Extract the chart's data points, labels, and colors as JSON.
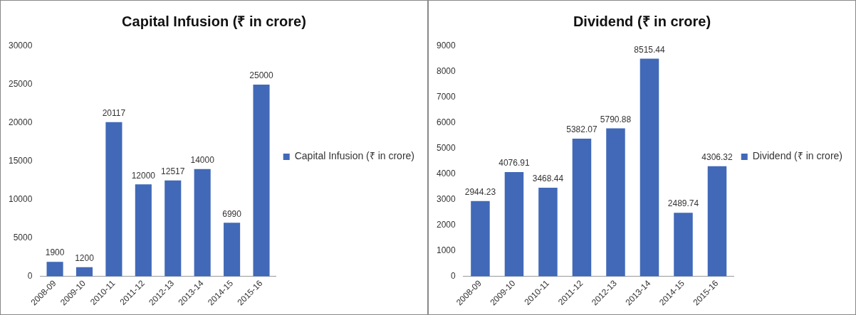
{
  "chart_data": [
    {
      "type": "bar",
      "title": "Capital Infusion (₹ in crore)",
      "categories": [
        "2008-09",
        "2009-10",
        "2010-11",
        "2011-12",
        "2012-13",
        "2013-14",
        "2014-15",
        "2015-16"
      ],
      "series": [
        {
          "name": "Capital Infusion (₹ in crore)",
          "color": "#4169b8",
          "values": [
            1900,
            1200,
            20117,
            12000,
            12517,
            14000,
            6990,
            25000
          ]
        }
      ],
      "ylim": [
        0,
        30000
      ],
      "yticks": [
        0,
        5000,
        10000,
        15000,
        20000,
        25000,
        30000
      ],
      "grid": false,
      "legend": "right",
      "data_labels": true
    },
    {
      "type": "bar",
      "title": "Dividend (₹ in crore)",
      "categories": [
        "2008-09",
        "2009-10",
        "2010-11",
        "2011-12",
        "2012-13",
        "2013-14",
        "2014-15",
        "2015-16"
      ],
      "series": [
        {
          "name": "Dividend (₹ in crore)",
          "color": "#4169b8",
          "values": [
            2944.23,
            4076.91,
            3468.44,
            5382.07,
            5790.88,
            8515.44,
            2489.74,
            4306.32
          ]
        }
      ],
      "ylim": [
        0,
        9000
      ],
      "yticks": [
        0,
        1000,
        2000,
        3000,
        4000,
        5000,
        6000,
        7000,
        8000,
        9000
      ],
      "grid": false,
      "legend": "right",
      "data_labels": true
    }
  ]
}
